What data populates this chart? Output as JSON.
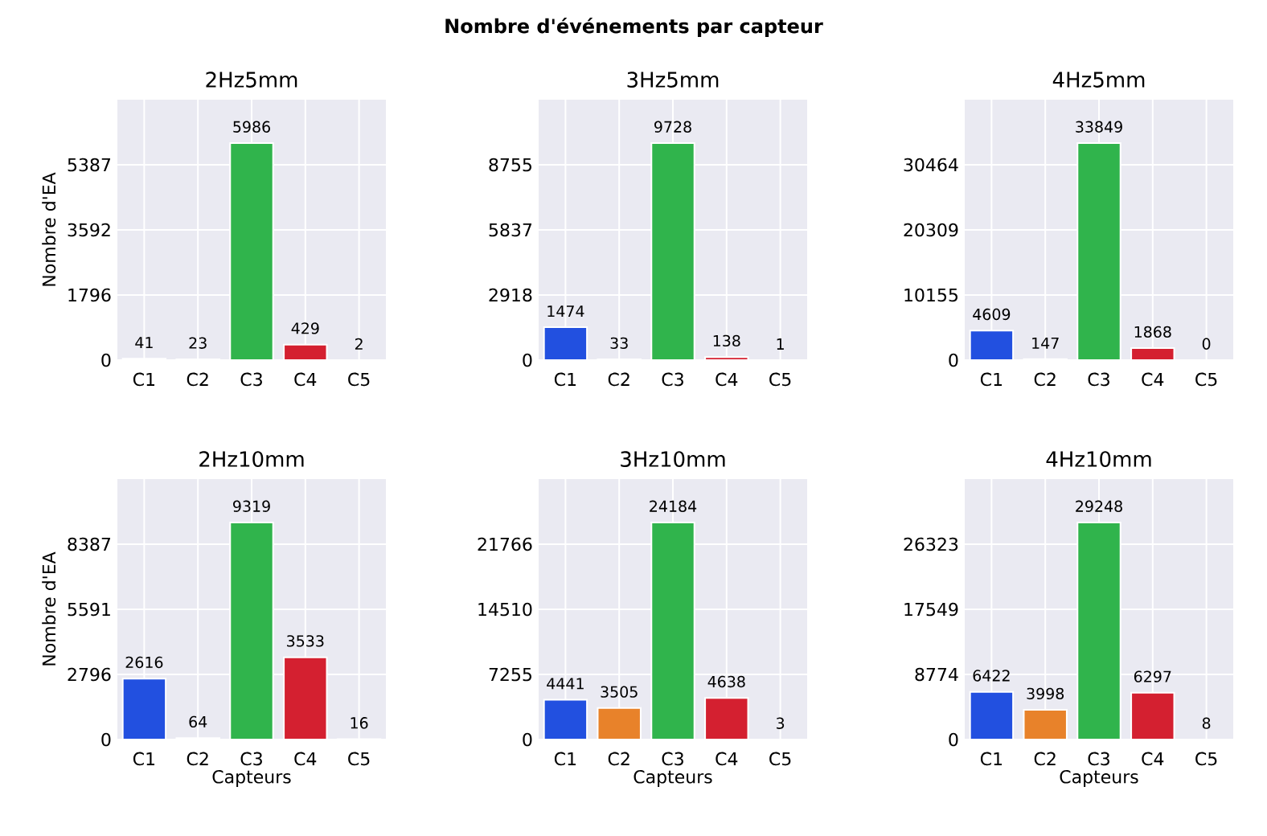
{
  "chart_data": [
    {
      "type": "bar",
      "title": "2Hz5mm",
      "annotations": [
        "Nombre d'événements par capteur"
      ],
      "ylabel": "Nombre d'EA",
      "categories": [
        "C1",
        "C2",
        "C3",
        "C4",
        "C5"
      ],
      "values": [
        41,
        23,
        5986,
        429,
        2
      ],
      "colors": [
        "#2250e0",
        "#e8822a",
        "#30b44c",
        "#d42030",
        "#8b2be2"
      ],
      "ylim": [
        0,
        7183
      ],
      "yticks": [
        0,
        1796,
        3592,
        5387
      ],
      "grid": true,
      "data_labels": true
    },
    {
      "type": "bar",
      "title": "3Hz5mm",
      "categories": [
        "C1",
        "C2",
        "C3",
        "C4",
        "C5"
      ],
      "values": [
        1474,
        33,
        9728,
        138,
        1
      ],
      "colors": [
        "#2250e0",
        "#e8822a",
        "#30b44c",
        "#d42030",
        "#8b2be2"
      ],
      "ylim": [
        0,
        11674
      ],
      "yticks": [
        0,
        2918,
        5837,
        8755
      ],
      "grid": true,
      "data_labels": true
    },
    {
      "type": "bar",
      "title": "4Hz5mm",
      "categories": [
        "C1",
        "C2",
        "C3",
        "C4",
        "C5"
      ],
      "values": [
        4609,
        147,
        33849,
        1868,
        0
      ],
      "colors": [
        "#2250e0",
        "#e8822a",
        "#30b44c",
        "#d42030",
        "#8b2be2"
      ],
      "ylim": [
        0,
        40619
      ],
      "yticks": [
        0,
        10155,
        20309,
        30464
      ],
      "grid": true,
      "data_labels": true
    },
    {
      "type": "bar",
      "title": "2Hz10mm",
      "ylabel": "Nombre d'EA",
      "xlabel": "Capteurs",
      "categories": [
        "C1",
        "C2",
        "C3",
        "C4",
        "C5"
      ],
      "values": [
        2616,
        64,
        9319,
        3533,
        16
      ],
      "colors": [
        "#2250e0",
        "#e8822a",
        "#30b44c",
        "#d42030",
        "#8b2be2"
      ],
      "ylim": [
        0,
        11183
      ],
      "yticks": [
        0,
        2796,
        5591,
        8387
      ],
      "grid": true,
      "data_labels": true
    },
    {
      "type": "bar",
      "title": "3Hz10mm",
      "xlabel": "Capteurs",
      "categories": [
        "C1",
        "C2",
        "C3",
        "C4",
        "C5"
      ],
      "values": [
        4441,
        3505,
        24184,
        4638,
        3
      ],
      "colors": [
        "#2250e0",
        "#e8822a",
        "#30b44c",
        "#d42030",
        "#8b2be2"
      ],
      "ylim": [
        0,
        29021
      ],
      "yticks": [
        0,
        7255,
        14510,
        21766
      ],
      "grid": true,
      "data_labels": true
    },
    {
      "type": "bar",
      "title": "4Hz10mm",
      "xlabel": "Capteurs",
      "categories": [
        "C1",
        "C2",
        "C3",
        "C4",
        "C5"
      ],
      "values": [
        6422,
        3998,
        29248,
        6297,
        8
      ],
      "colors": [
        "#2250e0",
        "#e8822a",
        "#30b44c",
        "#d42030",
        "#8b2be2"
      ],
      "ylim": [
        0,
        35098
      ],
      "yticks": [
        0,
        8774,
        17549,
        26323
      ],
      "grid": true,
      "data_labels": true
    }
  ]
}
